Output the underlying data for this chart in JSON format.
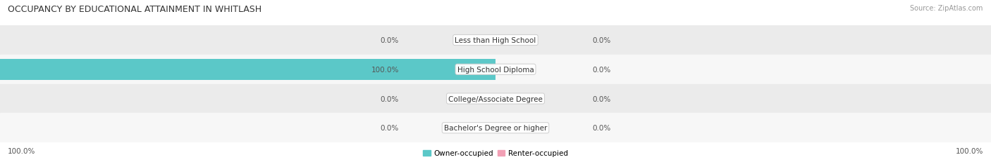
{
  "title": "OCCUPANCY BY EDUCATIONAL ATTAINMENT IN WHITLASH",
  "source": "Source: ZipAtlas.com",
  "categories": [
    "Less than High School",
    "High School Diploma",
    "College/Associate Degree",
    "Bachelor's Degree or higher"
  ],
  "owner_values": [
    0.0,
    100.0,
    0.0,
    0.0
  ],
  "renter_values": [
    0.0,
    0.0,
    0.0,
    0.0
  ],
  "owner_color": "#5bc8c8",
  "renter_color": "#f2a0b5",
  "row_colors": [
    "#ebebeb",
    "#f7f7f7",
    "#ebebeb",
    "#f7f7f7"
  ],
  "label_color": "#555555",
  "title_color": "#333333",
  "source_color": "#999999",
  "axis_range": 100.0,
  "left_axis_label": "100.0%",
  "right_axis_label": "100.0%",
  "legend_owner": "Owner-occupied",
  "legend_renter": "Renter-occupied",
  "figsize": [
    14.06,
    2.32
  ],
  "dpi": 100
}
